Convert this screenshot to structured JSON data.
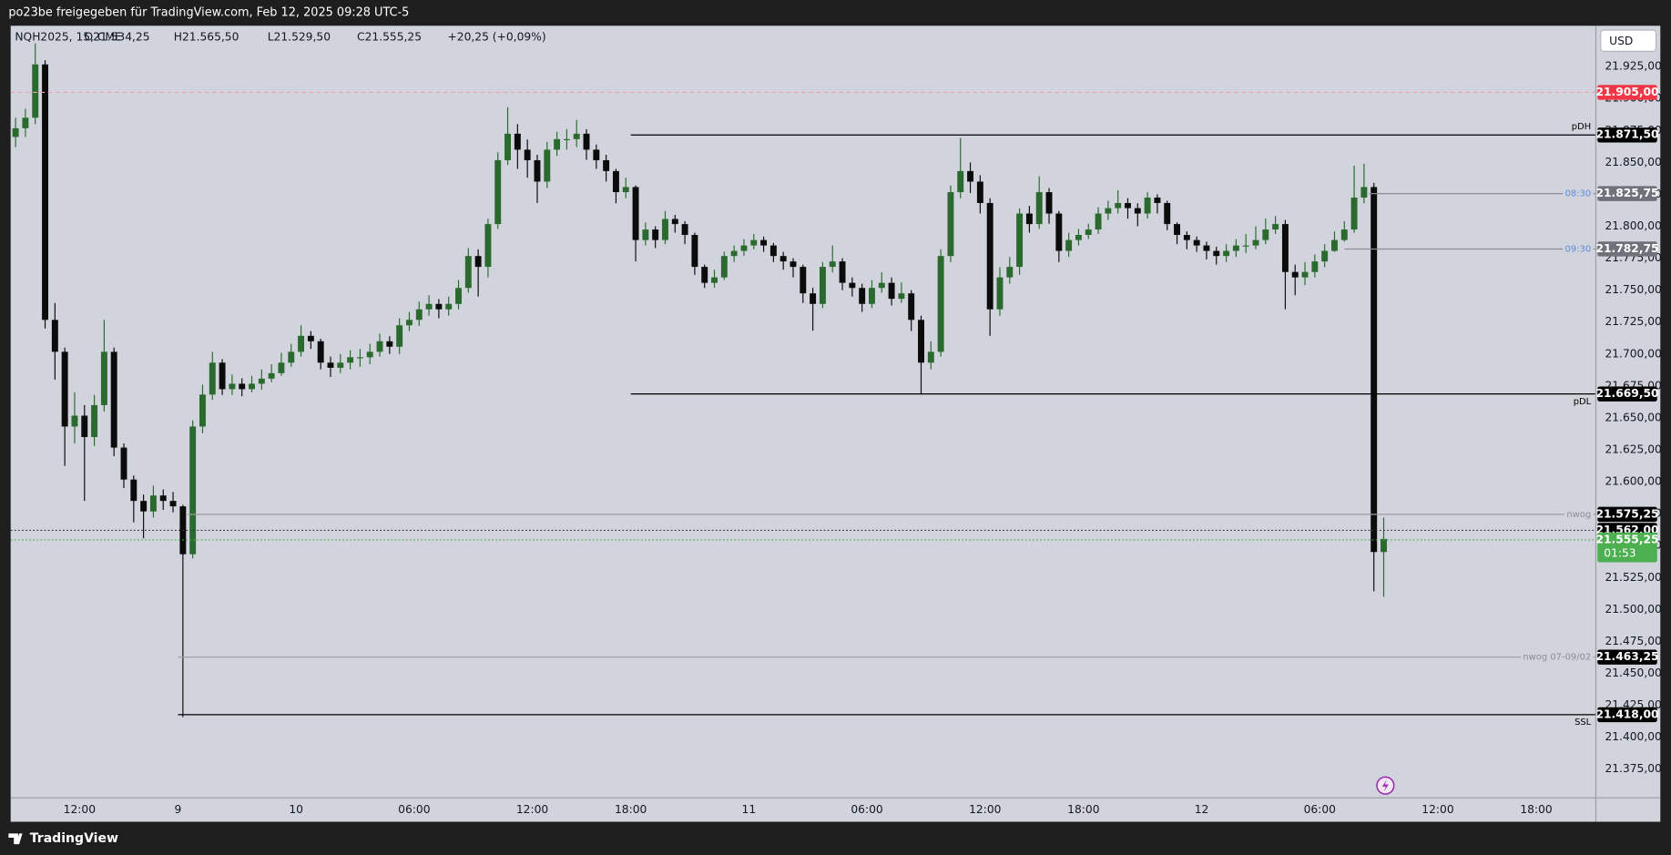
{
  "chart_data": {
    "type": "candlestick",
    "title": "po23be freigegeben für TradingView.com, Feb 12, 2025 09:28 UTC-5",
    "symbol": "NQH2025, 15, CME",
    "ohlc_labels": [
      "O21.534,25",
      "H21.565,50",
      "L21.529,50",
      "C21.555,25",
      "+20,25 (+0,09%)"
    ],
    "currency": "USD",
    "brand": "TradingView",
    "up_color": "#2b6a2e",
    "down_color": "#0b0b0b",
    "grid": false,
    "xlim": [
      0,
      161
    ],
    "xticks": [
      {
        "value": 7,
        "label": "12:00"
      },
      {
        "value": 17,
        "label": "9"
      },
      {
        "value": 29,
        "label": "10"
      },
      {
        "value": 41,
        "label": "06:00"
      },
      {
        "value": 53,
        "label": "12:00"
      },
      {
        "value": 63,
        "label": "18:00"
      },
      {
        "value": 75,
        "label": "11"
      },
      {
        "value": 87,
        "label": "06:00"
      },
      {
        "value": 99,
        "label": "12:00"
      },
      {
        "value": 109,
        "label": "18:00"
      },
      {
        "value": 121,
        "label": "12"
      },
      {
        "value": 133,
        "label": "06:00"
      },
      {
        "value": 145,
        "label": "12:00"
      },
      {
        "value": 155,
        "label": "18:00"
      }
    ],
    "ylim": [
      21353,
      21957
    ],
    "yticks": [
      {
        "value": 21375,
        "label": "21.375,00"
      },
      {
        "value": 21400,
        "label": "21.400,00"
      },
      {
        "value": 21425,
        "label": "21.425,00"
      },
      {
        "value": 21450,
        "label": "21.450,00"
      },
      {
        "value": 21475,
        "label": "21.475,00"
      },
      {
        "value": 21500,
        "label": "21.500,00"
      },
      {
        "value": 21525,
        "label": "21.525,00"
      },
      {
        "value": 21550,
        "label": "21.550,00"
      },
      {
        "value": 21575,
        "label": "21.575,00"
      },
      {
        "value": 21600,
        "label": "21.600,00"
      },
      {
        "value": 21625,
        "label": "21.625,00"
      },
      {
        "value": 21650,
        "label": "21.650,00"
      },
      {
        "value": 21675,
        "label": "21.675,00"
      },
      {
        "value": 21700,
        "label": "21.700,00"
      },
      {
        "value": 21725,
        "label": "21.725,00"
      },
      {
        "value": 21750,
        "label": "21.750,00"
      },
      {
        "value": 21775,
        "label": "21.775,00"
      },
      {
        "value": 21800,
        "label": "21.800,00"
      },
      {
        "value": 21825,
        "label": "21.825,00"
      },
      {
        "value": 21850,
        "label": "21.850,00"
      },
      {
        "value": 21875,
        "label": "21.875,00"
      },
      {
        "value": 21900,
        "label": "21.900,00"
      },
      {
        "value": 21925,
        "label": "21.925,00"
      }
    ],
    "levels": [
      {
        "value": 21905,
        "label": "21.905,00",
        "from": 0,
        "style": "dashed",
        "color": "#f0a0a8",
        "box": "#f23645"
      },
      {
        "value": 21871.5,
        "label": "21.871,50",
        "text": "pDH",
        "from": 63,
        "style": "solid",
        "color": "#000000",
        "text_color": "#000000",
        "box": "#000000"
      },
      {
        "value": 21825.75,
        "label": "21.825,75",
        "text": "08:30",
        "from": 138,
        "style": "solid",
        "color": "#8a8d96",
        "text_color": "#5b8bd8",
        "box": "#6f727a"
      },
      {
        "value": 21782.75,
        "label": "21.782,75",
        "text": "09:30",
        "from": 135.5,
        "style": "solid",
        "color": "#8a8d96",
        "text_color": "#5b8bd8",
        "box": "#6f727a"
      },
      {
        "value": 21669.5,
        "label": "21.669,50",
        "text": "pDL",
        "from": 63,
        "style": "solid",
        "color": "#000000",
        "text_color": "#000000",
        "box": "#000000"
      },
      {
        "value": 21575.25,
        "label": "21.575,25",
        "text": "nwog",
        "from": 18,
        "style": "solid",
        "color": "#9a9ca3",
        "text_color": "#8a8d96",
        "box": "#000000"
      },
      {
        "value": 21562,
        "label": "21.562,00",
        "from": 0,
        "style": "dotted",
        "color": "#333333",
        "box": "#000000"
      },
      {
        "value": 21555.25,
        "label": "21.555,25",
        "countdown": "01:53",
        "from": 0,
        "style": "dotted",
        "color": "#4caf50",
        "box": "#4caf50"
      },
      {
        "value": 21463.25,
        "label": "21.463,25",
        "text": "nwog 07-09/02",
        "from": 17,
        "style": "solid",
        "color": "#9a9ca3",
        "text_color": "#8a8d96",
        "box": "#000000"
      },
      {
        "value": 21418,
        "label": "21.418,00",
        "text": "SSL",
        "from": 17,
        "style": "solid",
        "color": "#000000",
        "text_color": "#000000",
        "box": "#000000"
      }
    ],
    "candles": [
      [
        21870,
        21885,
        21862,
        21876.75
      ],
      [
        21876.75,
        21892,
        21870,
        21885
      ],
      [
        21885,
        21943.25,
        21880,
        21926.75
      ],
      [
        21926.75,
        21930,
        21720,
        21726.75
      ],
      [
        21726.75,
        21740,
        21680,
        21701.75
      ],
      [
        21701.75,
        21705,
        21612.5,
        21643.25
      ],
      [
        21643.25,
        21670,
        21630,
        21651.75
      ],
      [
        21651.75,
        21660,
        21585,
        21635
      ],
      [
        21635,
        21668,
        21628,
        21660
      ],
      [
        21660,
        21726.75,
        21655,
        21701.75
      ],
      [
        21701.75,
        21705,
        21620,
        21626.75
      ],
      [
        21626.75,
        21630,
        21595,
        21601.75
      ],
      [
        21601.75,
        21605,
        21568.25,
        21585
      ],
      [
        21585,
        21590,
        21555.75,
        21576.75
      ],
      [
        21576.75,
        21597,
        21572,
        21589.25
      ],
      [
        21589.25,
        21594,
        21578,
        21585
      ],
      [
        21585,
        21592,
        21576,
        21580.75
      ],
      [
        21580.75,
        21582,
        21415.75,
        21543.25
      ],
      [
        21543.25,
        21648,
        21540,
        21643.25
      ],
      [
        21643.25,
        21676,
        21638,
        21668.25
      ],
      [
        21668.25,
        21701.75,
        21664,
        21693.25
      ],
      [
        21693.25,
        21696,
        21668,
        21672.5
      ],
      [
        21672.5,
        21684,
        21668,
        21676.75
      ],
      [
        21676.75,
        21681,
        21667,
        21672.5
      ],
      [
        21672.5,
        21683,
        21670,
        21676.75
      ],
      [
        21676.75,
        21688,
        21672,
        21680.75
      ],
      [
        21680.75,
        21692,
        21678,
        21685
      ],
      [
        21685,
        21701,
        21683,
        21693.25
      ],
      [
        21693.25,
        21708,
        21690,
        21701.75
      ],
      [
        21701.75,
        21722.5,
        21698,
        21714.25
      ],
      [
        21714.25,
        21718,
        21704,
        21710
      ],
      [
        21710,
        21712,
        21688,
        21693.25
      ],
      [
        21693.25,
        21698,
        21682,
        21689.25
      ],
      [
        21689.25,
        21700,
        21685,
        21693.25
      ],
      [
        21693.25,
        21703,
        21688,
        21697.5
      ],
      [
        21697.5,
        21704,
        21690,
        21697.5
      ],
      [
        21697.5,
        21708,
        21692,
        21701.75
      ],
      [
        21701.75,
        21716,
        21698,
        21710
      ],
      [
        21710,
        21714,
        21700,
        21705.75
      ],
      [
        21705.75,
        21728,
        21700,
        21722.5
      ],
      [
        21722.5,
        21733,
        21718,
        21726.75
      ],
      [
        21726.75,
        21741,
        21722,
        21735
      ],
      [
        21735,
        21746,
        21730,
        21739.25
      ],
      [
        21739.25,
        21743,
        21728,
        21735
      ],
      [
        21735,
        21745,
        21730,
        21739.25
      ],
      [
        21739.25,
        21758,
        21735,
        21751.75
      ],
      [
        21751.75,
        21783,
        21748,
        21776.75
      ],
      [
        21776.75,
        21782,
        21745,
        21768.25
      ],
      [
        21768.25,
        21806,
        21760,
        21801.75
      ],
      [
        21801.75,
        21858,
        21798,
        21851.75
      ],
      [
        21851.75,
        21893.25,
        21848,
        21872.5
      ],
      [
        21872.5,
        21880,
        21845,
        21860
      ],
      [
        21860,
        21868,
        21838,
        21851.75
      ],
      [
        21851.75,
        21856,
        21818.25,
        21835
      ],
      [
        21835,
        21866,
        21830,
        21860
      ],
      [
        21860,
        21874,
        21855,
        21868.25
      ],
      [
        21868.25,
        21876,
        21860,
        21868.25
      ],
      [
        21868.25,
        21883.25,
        21862,
        21872.5
      ],
      [
        21872.5,
        21876,
        21852,
        21860
      ],
      [
        21860,
        21864,
        21845,
        21851.75
      ],
      [
        21851.75,
        21856,
        21835,
        21843.25
      ],
      [
        21843.25,
        21845,
        21818,
        21826.75
      ],
      [
        21826.75,
        21838,
        21822,
        21830.75
      ],
      [
        21830.75,
        21832,
        21772.5,
        21789.25
      ],
      [
        21789.25,
        21803,
        21785,
        21797.5
      ],
      [
        21797.5,
        21800,
        21783,
        21789.25
      ],
      [
        21789.25,
        21812,
        21786,
        21805.75
      ],
      [
        21805.75,
        21809,
        21795,
        21801.75
      ],
      [
        21801.75,
        21804,
        21786,
        21793.25
      ],
      [
        21793.25,
        21795,
        21762,
        21768.25
      ],
      [
        21768.25,
        21770,
        21751.75,
        21755.75
      ],
      [
        21755.75,
        21766,
        21752,
        21760
      ],
      [
        21760,
        21780,
        21758,
        21776.75
      ],
      [
        21776.75,
        21785,
        21772,
        21780.75
      ],
      [
        21780.75,
        21790,
        21777,
        21785
      ],
      [
        21785,
        21794,
        21782,
        21789.25
      ],
      [
        21789.25,
        21792,
        21780,
        21785
      ],
      [
        21785,
        21787,
        21772,
        21776.75
      ],
      [
        21776.75,
        21780,
        21766,
        21772.5
      ],
      [
        21772.5,
        21775,
        21760,
        21768.25
      ],
      [
        21768.25,
        21770,
        21740,
        21747.5
      ],
      [
        21747.5,
        21752,
        21718.25,
        21739.25
      ],
      [
        21739.25,
        21772,
        21736,
        21768.25
      ],
      [
        21768.25,
        21785,
        21764,
        21772.5
      ],
      [
        21772.5,
        21775,
        21750,
        21755.75
      ],
      [
        21755.75,
        21760,
        21745,
        21751.75
      ],
      [
        21751.75,
        21755,
        21733,
        21739.25
      ],
      [
        21739.25,
        21758,
        21736,
        21751.75
      ],
      [
        21751.75,
        21764,
        21748,
        21755.75
      ],
      [
        21755.75,
        21760,
        21738,
        21743.25
      ],
      [
        21743.25,
        21756,
        21740,
        21747.5
      ],
      [
        21747.5,
        21750,
        21718,
        21726.75
      ],
      [
        21726.75,
        21730,
        21668.25,
        21693.25
      ],
      [
        21693.25,
        21710,
        21688,
        21701.75
      ],
      [
        21701.75,
        21782,
        21698,
        21776.75
      ],
      [
        21776.75,
        21832,
        21772,
        21826.75
      ],
      [
        21826.75,
        21869.25,
        21822,
        21843.25
      ],
      [
        21843.25,
        21850,
        21826,
        21835
      ],
      [
        21835,
        21840,
        21810,
        21818.25
      ],
      [
        21818.25,
        21822,
        21714.25,
        21735
      ],
      [
        21735,
        21768,
        21730,
        21760
      ],
      [
        21760,
        21776,
        21755,
        21768.25
      ],
      [
        21768.25,
        21814,
        21762,
        21810
      ],
      [
        21810,
        21816,
        21795,
        21801.75
      ],
      [
        21801.75,
        21839.25,
        21798,
        21826.75
      ],
      [
        21826.75,
        21830,
        21802,
        21810
      ],
      [
        21810,
        21812,
        21772,
        21780.75
      ],
      [
        21780.75,
        21795,
        21776,
        21789.25
      ],
      [
        21789.25,
        21798,
        21785,
        21793.25
      ],
      [
        21793.25,
        21802,
        21790,
        21797.5
      ],
      [
        21797.5,
        21815,
        21794,
        21810
      ],
      [
        21810,
        21820,
        21805,
        21814.25
      ],
      [
        21814.25,
        21828.25,
        21810,
        21818.25
      ],
      [
        21818.25,
        21822,
        21806,
        21814.25
      ],
      [
        21814.25,
        21818,
        21800,
        21810
      ],
      [
        21810,
        21826.75,
        21806,
        21822.5
      ],
      [
        21822.5,
        21825,
        21810,
        21818.25
      ],
      [
        21818.25,
        21820,
        21797,
        21801.75
      ],
      [
        21801.75,
        21803,
        21786,
        21793.25
      ],
      [
        21793.25,
        21796,
        21782,
        21789.25
      ],
      [
        21789.25,
        21792,
        21780,
        21785
      ],
      [
        21785,
        21788,
        21774,
        21780.75
      ],
      [
        21780.75,
        21784,
        21770,
        21776.75
      ],
      [
        21776.75,
        21786,
        21772,
        21780.75
      ],
      [
        21780.75,
        21790,
        21776,
        21785
      ],
      [
        21785,
        21794,
        21779,
        21785
      ],
      [
        21785,
        21800,
        21782,
        21789.25
      ],
      [
        21789.25,
        21806,
        21786,
        21797.5
      ],
      [
        21797.5,
        21808,
        21794,
        21801.75
      ],
      [
        21801.75,
        21805,
        21735,
        21764.25
      ],
      [
        21764.25,
        21770,
        21746,
        21760
      ],
      [
        21760,
        21772,
        21754,
        21764.25
      ],
      [
        21764.25,
        21778,
        21760,
        21772.5
      ],
      [
        21772.5,
        21786,
        21768,
        21780.75
      ],
      [
        21780.75,
        21796,
        21780,
        21789.25
      ],
      [
        21789.25,
        21804,
        21788,
        21797.5
      ],
      [
        21797.5,
        21847.5,
        21795,
        21822.5
      ],
      [
        21822.5,
        21849,
        21818,
        21830.75
      ],
      [
        21830.75,
        21834,
        21514.25,
        21545
      ],
      [
        21545,
        21572,
        21510,
        21555.25
      ]
    ]
  }
}
